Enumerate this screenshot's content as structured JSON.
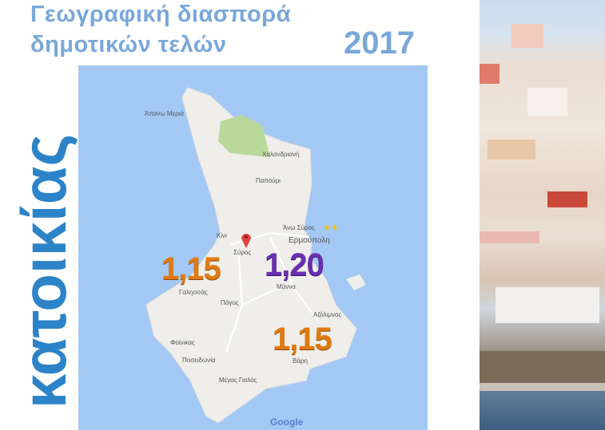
{
  "title": {
    "line1": "Γεωγραφική διασπορά",
    "line2": "δημοτικών τελών",
    "year": "2017"
  },
  "vertical_label": "κατοικίας",
  "colors": {
    "title": "#79a7d9",
    "vertical": "#2c83c8",
    "orange_value": "#e07a10",
    "purple_value": "#6a2fb0",
    "sea": "#a4c8f4",
    "land": "#efeeea"
  },
  "map": {
    "places": [
      "Άπανω Μεριά",
      "Χαλανδριανή",
      "Παπούρι",
      "Άνω Σύρος",
      "Ερμούπολη",
      "Κίνι",
      "Σύρος",
      "Μάννα",
      "Γαλησσάς",
      "Πάγος",
      "Αζόλιμνος",
      "Φοίνικας",
      "Βάρη",
      "Ποσειδωνία",
      "Μέγας Γιαλός"
    ],
    "values": [
      {
        "area": "Γαλησσάς",
        "value": "1,15",
        "color": "orange"
      },
      {
        "area": "Ερμούπολη",
        "value": "1,20",
        "color": "purple"
      },
      {
        "area": "Βάρη",
        "value": "1,15",
        "color": "orange"
      }
    ],
    "attribution": "Google",
    "marker_icon": "map-pin-icon"
  }
}
